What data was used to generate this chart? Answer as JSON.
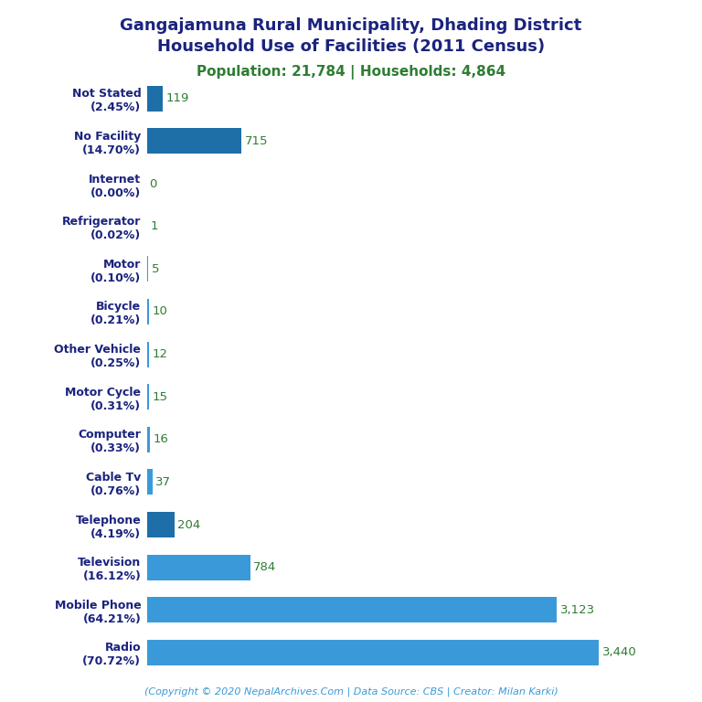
{
  "title_line1": "Gangajamuna Rural Municipality, Dhading District",
  "title_line2": "Household Use of Facilities (2011 Census)",
  "subtitle": "Population: 21,784 | Households: 4,864",
  "footer": "(Copyright © 2020 NepalArchives.Com | Data Source: CBS | Creator: Milan Karki)",
  "categories": [
    "Not Stated\n(2.45%)",
    "No Facility\n(14.70%)",
    "Internet\n(0.00%)",
    "Refrigerator\n(0.02%)",
    "Motor\n(0.10%)",
    "Bicycle\n(0.21%)",
    "Other Vehicle\n(0.25%)",
    "Motor Cycle\n(0.31%)",
    "Computer\n(0.33%)",
    "Cable Tv\n(0.76%)",
    "Telephone\n(4.19%)",
    "Television\n(16.12%)",
    "Mobile Phone\n(64.21%)",
    "Radio\n(70.72%)"
  ],
  "values": [
    119,
    715,
    0,
    1,
    5,
    10,
    12,
    15,
    16,
    37,
    204,
    784,
    3123,
    3440
  ],
  "value_labels": [
    "119",
    "715",
    "0",
    "1",
    "5",
    "10",
    "12",
    "15",
    "16",
    "37",
    "204",
    "784",
    "3,123",
    "3,440"
  ],
  "bar_colors": [
    "#1e6fa8",
    "#1e6fa8",
    "#3a9ad9",
    "#3a9ad9",
    "#3a9ad9",
    "#3a9ad9",
    "#3a9ad9",
    "#3a9ad9",
    "#3a9ad9",
    "#3a9ad9",
    "#1e6fa8",
    "#3a9ad9",
    "#3a9ad9",
    "#3a9ad9"
  ],
  "title_color": "#1a237e",
  "subtitle_color": "#2e7d32",
  "value_color": "#2e7d32",
  "ylabel_color": "#1a237e",
  "footer_color": "#3a9ad9",
  "background_color": "#ffffff",
  "xlim": [
    0,
    3800
  ],
  "figsize": [
    7.68,
    7.68
  ],
  "dpi": 100
}
